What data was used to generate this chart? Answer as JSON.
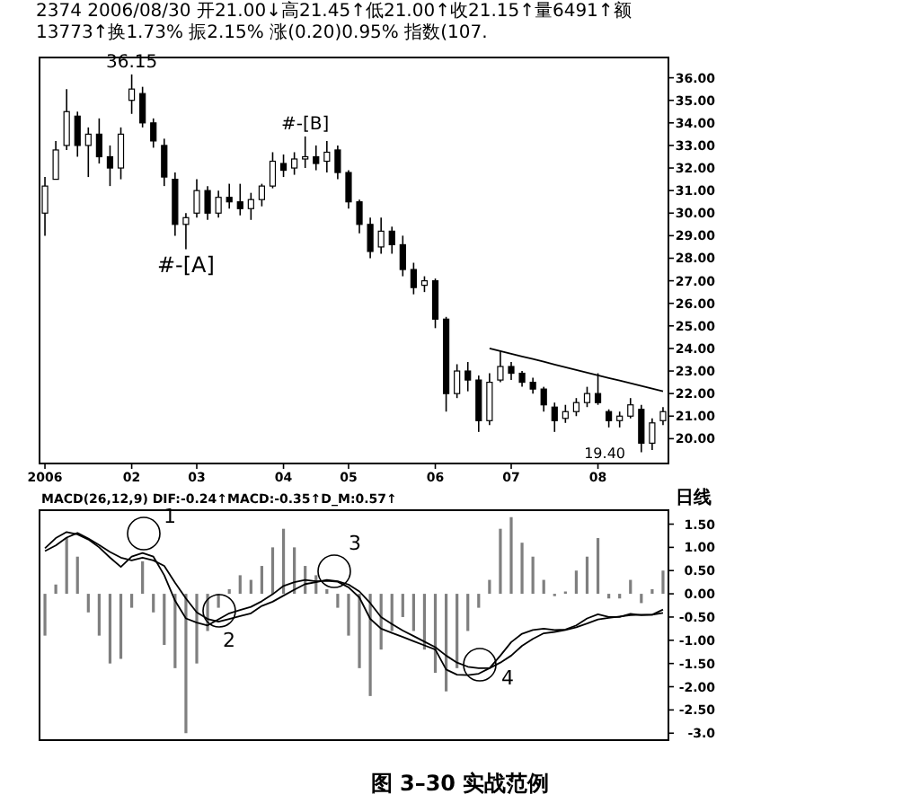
{
  "chart_data": [
    {
      "type": "candlestick",
      "subtitle": "2374 2006/08/30 开21.00↓高21.45↑低21.00↑收21.15↑量6491↑额13773↑换1.73% 振2.15% 涨(0.20)0.95% 指数(107.",
      "color": "#000000",
      "categories": [
        "2006",
        null,
        null,
        null,
        null,
        null,
        null,
        null,
        "02",
        null,
        null,
        null,
        null,
        null,
        "03",
        null,
        null,
        null,
        null,
        null,
        null,
        null,
        "04",
        null,
        null,
        null,
        null,
        null,
        "05",
        null,
        null,
        null,
        null,
        null,
        null,
        null,
        "06",
        null,
        null,
        null,
        null,
        null,
        null,
        "07",
        null,
        null,
        null,
        null,
        null,
        null,
        null,
        "08",
        null,
        null,
        null,
        null,
        null,
        null
      ],
      "ylim": [
        18.9,
        36.9
      ],
      "yticks": [
        {
          "value": 20,
          "label": "20.00"
        },
        {
          "value": 21,
          "label": "21.00"
        },
        {
          "value": 22,
          "label": "22.00"
        },
        {
          "value": 23,
          "label": "23.00"
        },
        {
          "value": 24,
          "label": "24.00"
        },
        {
          "value": 25,
          "label": "25.00"
        },
        {
          "value": 26,
          "label": "26.00"
        },
        {
          "value": 27,
          "label": "27.00"
        },
        {
          "value": 28,
          "label": "28.00"
        },
        {
          "value": 29,
          "label": "29.00"
        },
        {
          "value": 30,
          "label": "30.00"
        },
        {
          "value": 31,
          "label": "31.00"
        },
        {
          "value": 32,
          "label": "32.00"
        },
        {
          "value": 33,
          "label": "33.00"
        },
        {
          "value": 34,
          "label": "34.00"
        },
        {
          "value": 35,
          "label": "35.00"
        },
        {
          "value": 36,
          "label": "36.00"
        }
      ],
      "ohlc": [
        [
          30.0,
          31.6,
          29.0,
          31.2
        ],
        [
          31.5,
          33.2,
          31.5,
          32.8
        ],
        [
          33.0,
          35.5,
          32.8,
          34.5
        ],
        [
          34.3,
          34.5,
          32.5,
          33.0
        ],
        [
          33.0,
          33.8,
          31.6,
          33.5
        ],
        [
          33.5,
          34.2,
          32.2,
          32.5
        ],
        [
          32.5,
          33.0,
          31.2,
          32.0
        ],
        [
          32.0,
          33.8,
          31.5,
          33.5
        ],
        [
          35.0,
          36.15,
          34.4,
          35.5
        ],
        [
          35.3,
          35.6,
          33.8,
          34.0
        ],
        [
          34.0,
          34.2,
          32.9,
          33.2
        ],
        [
          33.0,
          33.3,
          31.2,
          31.6
        ],
        [
          31.5,
          31.8,
          29.0,
          29.5
        ],
        [
          29.5,
          30.0,
          28.4,
          29.8
        ],
        [
          30.0,
          31.5,
          29.8,
          31.0
        ],
        [
          31.0,
          31.2,
          29.7,
          30.0
        ],
        [
          30.0,
          31.0,
          29.8,
          30.7
        ],
        [
          30.7,
          31.3,
          30.2,
          30.5
        ],
        [
          30.5,
          31.3,
          29.9,
          30.2
        ],
        [
          30.2,
          30.9,
          29.7,
          30.6
        ],
        [
          30.6,
          31.3,
          30.3,
          31.2
        ],
        [
          31.2,
          32.7,
          31.1,
          32.3
        ],
        [
          32.2,
          32.6,
          31.6,
          31.9
        ],
        [
          32.0,
          32.7,
          31.7,
          32.4
        ],
        [
          32.4,
          33.4,
          32.0,
          32.5
        ],
        [
          32.5,
          33.0,
          31.9,
          32.2
        ],
        [
          32.3,
          33.2,
          31.8,
          32.7
        ],
        [
          32.8,
          33.0,
          31.5,
          31.8
        ],
        [
          31.8,
          31.9,
          30.2,
          30.5
        ],
        [
          30.5,
          30.6,
          29.1,
          29.5
        ],
        [
          29.5,
          29.8,
          28.0,
          28.3
        ],
        [
          28.5,
          29.8,
          28.2,
          29.2
        ],
        [
          29.2,
          29.4,
          28.2,
          28.6
        ],
        [
          28.6,
          29.0,
          27.2,
          27.5
        ],
        [
          27.5,
          27.8,
          26.4,
          26.7
        ],
        [
          26.8,
          27.2,
          26.5,
          27.0
        ],
        [
          27.0,
          27.1,
          24.9,
          25.3
        ],
        [
          25.3,
          25.4,
          21.2,
          22.0
        ],
        [
          22.0,
          23.3,
          21.8,
          23.0
        ],
        [
          23.0,
          23.4,
          22.1,
          22.6
        ],
        [
          22.6,
          22.8,
          20.3,
          20.8
        ],
        [
          20.8,
          22.9,
          20.6,
          22.5
        ],
        [
          22.6,
          23.9,
          22.5,
          23.2
        ],
        [
          23.2,
          23.4,
          22.6,
          22.9
        ],
        [
          22.9,
          23.0,
          22.3,
          22.5
        ],
        [
          22.5,
          22.7,
          22.0,
          22.2
        ],
        [
          22.2,
          22.3,
          21.2,
          21.5
        ],
        [
          21.4,
          21.6,
          20.3,
          20.8
        ],
        [
          20.9,
          21.5,
          20.7,
          21.2
        ],
        [
          21.2,
          21.8,
          21.0,
          21.6
        ],
        [
          21.6,
          22.3,
          21.4,
          22.0
        ],
        [
          22.0,
          22.9,
          21.5,
          21.6
        ],
        [
          21.2,
          21.3,
          20.5,
          20.8
        ],
        [
          20.8,
          21.2,
          20.5,
          21.0
        ],
        [
          21.0,
          21.8,
          20.9,
          21.5
        ],
        [
          21.3,
          21.5,
          19.4,
          19.8
        ],
        [
          19.8,
          20.9,
          19.5,
          20.7
        ],
        [
          20.8,
          21.4,
          20.6,
          21.2
        ]
      ],
      "series": [
        {
          "type": "line",
          "color": "#000000",
          "values": [
            null,
            null,
            null,
            null,
            null,
            null,
            null,
            null,
            null,
            null,
            null,
            null,
            null,
            null,
            null,
            null,
            null,
            null,
            null,
            null,
            null,
            null,
            null,
            null,
            null,
            null,
            null,
            null,
            null,
            null,
            null,
            null,
            null,
            null,
            null,
            null,
            null,
            null,
            null,
            null,
            null,
            24.0,
            23.88,
            23.76,
            23.64,
            23.53,
            23.41,
            23.29,
            23.17,
            23.05,
            22.93,
            22.81,
            22.69,
            22.58,
            22.46,
            22.34,
            22.22,
            22.1
          ]
        }
      ],
      "annotations": [
        {
          "text": "36.15",
          "y": 36.15
        },
        {
          "text": "#-[A]",
          "y": 28.4
        },
        {
          "text": "#-[B]",
          "y": 33.4
        },
        "19.40"
      ]
    },
    {
      "type": "bar",
      "title": "MACD(26,12,9) DIF:-0.24↑MACD:-0.35↑D_M:0.57↑",
      "categories": [
        null,
        null,
        null,
        null,
        null,
        null,
        null,
        null,
        null,
        null,
        null,
        null,
        null,
        null,
        null,
        null,
        null,
        null,
        null,
        null,
        null,
        null,
        null,
        null,
        null,
        null,
        null,
        null,
        null,
        null,
        null,
        null,
        null,
        null,
        null,
        null,
        null,
        null,
        null,
        null,
        null,
        null,
        null,
        null,
        null,
        null,
        null,
        null,
        null,
        null,
        null,
        null,
        null,
        null,
        null,
        null,
        null,
        null
      ],
      "tick_labels": "y",
      "ylim": [
        -3.15,
        1.8
      ],
      "yticks": [
        {
          "value": 1.5,
          "label": "1.50"
        },
        {
          "value": 1,
          "label": "1.00"
        },
        {
          "value": 0.5,
          "label": "0.50"
        },
        {
          "value": 0,
          "label": "0.00"
        },
        {
          "value": -0.5,
          "label": "-0.50"
        },
        {
          "value": -1,
          "label": "-1.00"
        },
        {
          "value": -1.5,
          "label": "-1.50"
        },
        {
          "value": -2,
          "label": "-2.00"
        },
        {
          "value": -2.5,
          "label": "-2.50"
        },
        {
          "value": -3,
          "label": "-3.0"
        }
      ],
      "series": [
        {
          "type": "bar",
          "color": "#7f7f7f",
          "values": [
            -0.9,
            0.2,
            1.2,
            0.8,
            -0.4,
            -0.9,
            -1.5,
            -1.4,
            -0.3,
            0.7,
            -0.4,
            -1.1,
            -1.6,
            -3.0,
            -1.5,
            -0.8,
            -0.3,
            0.1,
            0.4,
            0.3,
            0.6,
            1.0,
            1.4,
            1.0,
            0.6,
            0.4,
            0.1,
            -0.3,
            -0.9,
            -1.6,
            -2.2,
            -1.2,
            -0.8,
            -0.5,
            -0.8,
            -1.2,
            -1.7,
            -2.1,
            -1.6,
            -0.8,
            -0.3,
            0.3,
            1.4,
            1.65,
            1.1,
            0.8,
            0.3,
            -0.05,
            0.05,
            0.5,
            0.8,
            1.2,
            -0.1,
            -0.1,
            0.3,
            -0.2,
            0.1,
            0.5
          ]
        },
        {
          "type": "line",
          "color": "#000000",
          "values": [
            0.98,
            1.2,
            1.33,
            1.28,
            1.17,
            1.0,
            0.78,
            0.58,
            0.8,
            0.88,
            0.8,
            0.4,
            -0.15,
            -0.53,
            -0.62,
            -0.68,
            -0.55,
            -0.42,
            -0.35,
            -0.28,
            -0.16,
            -0.01,
            0.17,
            0.25,
            0.3,
            0.27,
            0.28,
            0.26,
            0.14,
            -0.08,
            -0.54,
            -0.75,
            -0.84,
            -0.93,
            -1.02,
            -1.11,
            -1.2,
            -1.63,
            -1.74,
            -1.75,
            -1.72,
            -1.6,
            -1.33,
            -1.04,
            -0.86,
            -0.78,
            -0.75,
            -0.78,
            -0.77,
            -0.68,
            -0.53,
            -0.44,
            -0.5,
            -0.5,
            -0.43,
            -0.46,
            -0.45,
            -0.34
          ]
        },
        {
          "type": "line",
          "color": "#000000",
          "values": [
            0.92,
            1.04,
            1.21,
            1.31,
            1.19,
            1.05,
            0.9,
            0.78,
            0.72,
            0.78,
            0.72,
            0.6,
            0.24,
            -0.1,
            -0.4,
            -0.54,
            -0.6,
            -0.54,
            -0.48,
            -0.42,
            -0.26,
            -0.17,
            -0.04,
            0.09,
            0.21,
            0.25,
            0.3,
            0.27,
            0.2,
            0.05,
            -0.2,
            -0.5,
            -0.65,
            -0.79,
            -0.91,
            -1.03,
            -1.15,
            -1.33,
            -1.48,
            -1.57,
            -1.6,
            -1.6,
            -1.48,
            -1.33,
            -1.12,
            -0.97,
            -0.85,
            -0.82,
            -0.78,
            -0.72,
            -0.64,
            -0.55,
            -0.52,
            -0.49,
            -0.46,
            -0.45,
            -0.45,
            -0.41
          ]
        }
      ],
      "annotations": [
        "1",
        "2",
        "3",
        "4",
        "日线",
        "图 3–30 实战范例"
      ]
    }
  ]
}
